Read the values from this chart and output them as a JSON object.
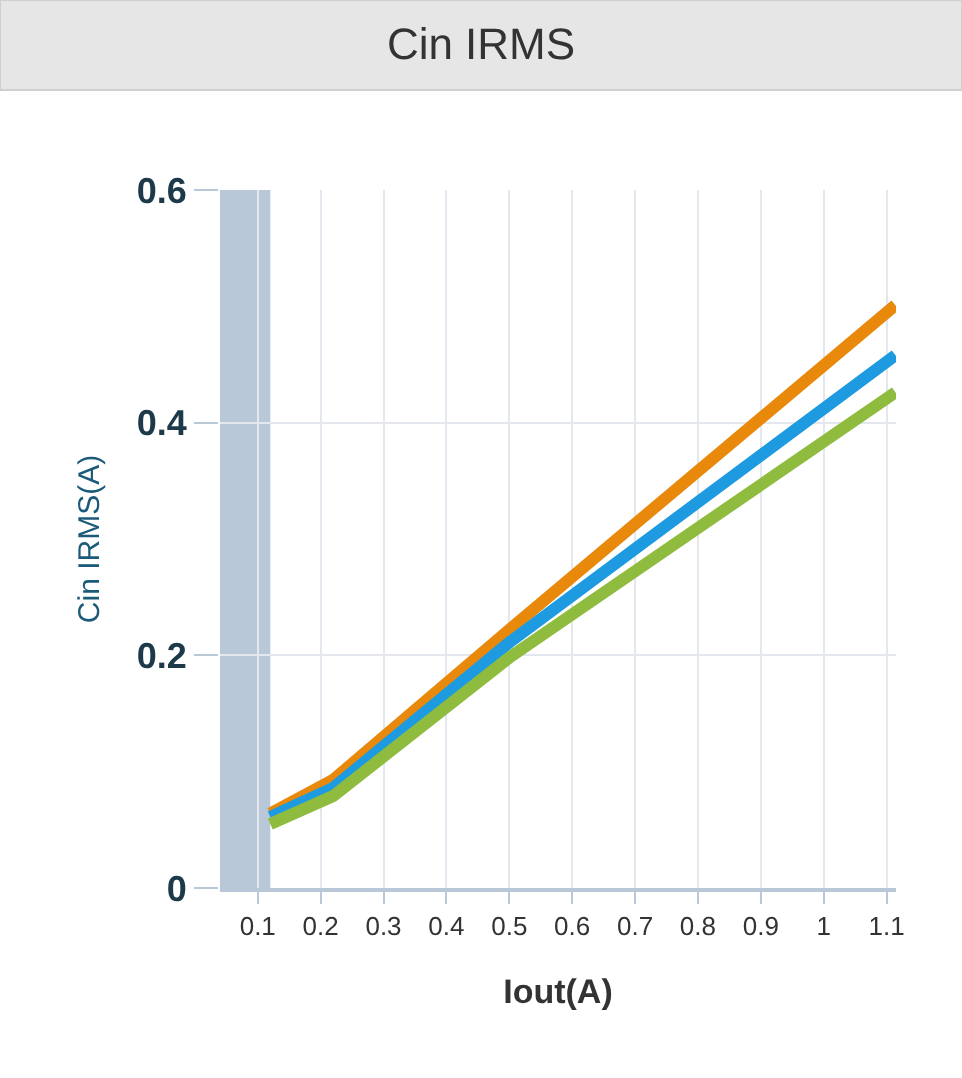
{
  "chart_data": {
    "type": "line",
    "title": "Cin IRMS",
    "xlabel": "Iout(A)",
    "ylabel": "Cin IRMS(A)",
    "xlim": [
      0.04,
      1.115
    ],
    "xticks": [
      0.1,
      0.2,
      0.3,
      0.4,
      0.5,
      0.6,
      0.7,
      0.8,
      0.9,
      1,
      1.1
    ],
    "ylim": [
      0,
      0.6
    ],
    "yticks": [
      0,
      0.2,
      0.4,
      0.6
    ],
    "x": [
      0.12,
      0.22,
      0.5,
      1.114
    ],
    "series": [
      {
        "color": "#e8890c",
        "values": [
          0.064,
          0.093,
          0.222,
          0.501
        ]
      },
      {
        "color": "#1e9be0",
        "values": [
          0.061,
          0.086,
          0.211,
          0.458
        ]
      },
      {
        "color": "#8fbc3f",
        "values": [
          0.055,
          0.079,
          0.198,
          0.426
        ]
      }
    ],
    "bands": [
      {
        "axis": "x",
        "from": 0.04,
        "to": 0.12,
        "color": "#b8c8d8"
      }
    ],
    "grid": true,
    "marker": "none",
    "line_style": "solid"
  }
}
